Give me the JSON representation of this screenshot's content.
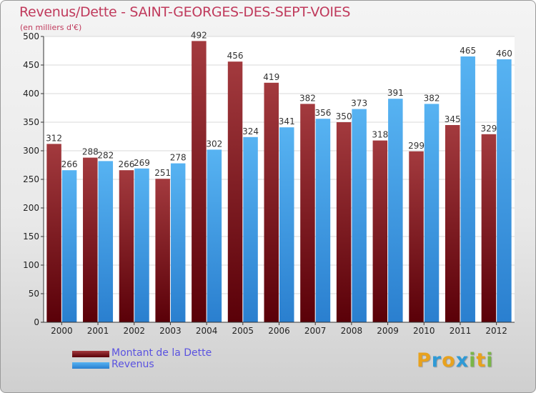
{
  "colors": {
    "debt": "#6b0d12",
    "debt_light": "#a33a3e",
    "revenue": "#4aa3e8",
    "revenue_dark": "#2a7fcf",
    "grid": "#d9d9d9",
    "title": "#c03a5c"
  },
  "logo": {
    "text": "Proxiti",
    "letters": [
      "P",
      "r",
      "o",
      "x",
      "i",
      "t",
      "i"
    ],
    "colors": [
      "#e8a21e",
      "#2f9ad6",
      "#e8a21e",
      "#2f9ad6",
      "#7ab648",
      "#e8a21e",
      "#7ab648"
    ]
  },
  "chart_data": {
    "type": "bar",
    "title": "Revenus/Dette - SAINT-GEORGES-DES-SEPT-VOIES",
    "subtitle": "(en milliers d'€)",
    "xlabel": "",
    "ylabel": "",
    "ylim": [
      0,
      500
    ],
    "yticks": [
      0,
      50,
      100,
      150,
      200,
      250,
      300,
      350,
      400,
      450,
      500
    ],
    "grid": true,
    "legend_position": "bottom-left",
    "categories": [
      "2000",
      "2001",
      "2002",
      "2003",
      "2004",
      "2005",
      "2006",
      "2007",
      "2008",
      "2009",
      "2010",
      "2011",
      "2012"
    ],
    "series": [
      {
        "name": "Montant de la Dette",
        "values": [
          312,
          288,
          266,
          251,
          492,
          456,
          419,
          382,
          350,
          318,
          299,
          345,
          329
        ]
      },
      {
        "name": "Revenus",
        "values": [
          266,
          282,
          269,
          278,
          302,
          324,
          341,
          356,
          373,
          391,
          382,
          465,
          460
        ]
      }
    ]
  }
}
